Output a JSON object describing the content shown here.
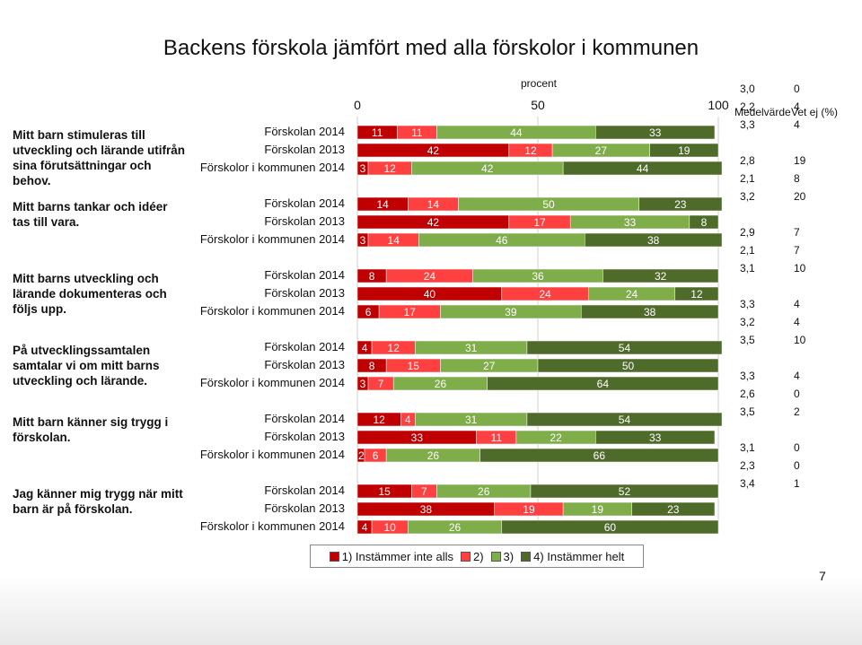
{
  "title": "Backens förskola jämfört med alla förskolor i kommunen",
  "axis_caption": "procent",
  "column_headers": {
    "mean": "Medelvärde",
    "unknown": "Vet ej (%)"
  },
  "side_stats": [
    {
      "mean": "3,0",
      "unknown": "0"
    },
    {
      "mean": "2,2",
      "unknown": "4"
    },
    {
      "mean": "3,3",
      "unknown": "4"
    },
    {
      "mean": "2,8",
      "unknown": "19"
    },
    {
      "mean": "2,1",
      "unknown": "8"
    },
    {
      "mean": "3,2",
      "unknown": "20"
    },
    {
      "mean": "2,9",
      "unknown": "7"
    },
    {
      "mean": "2,1",
      "unknown": "7"
    },
    {
      "mean": "3,1",
      "unknown": "10"
    },
    {
      "mean": "3,3",
      "unknown": "4"
    },
    {
      "mean": "3,2",
      "unknown": "4"
    },
    {
      "mean": "3,5",
      "unknown": "10"
    },
    {
      "mean": "3,3",
      "unknown": "4"
    },
    {
      "mean": "2,6",
      "unknown": "0"
    },
    {
      "mean": "3,5",
      "unknown": "2"
    },
    {
      "mean": "3,1",
      "unknown": "0"
    },
    {
      "mean": "2,3",
      "unknown": "0"
    },
    {
      "mean": "3,4",
      "unknown": "1"
    }
  ],
  "legend": {
    "items": [
      {
        "label": "1) Instämmer inte alls",
        "color": "#c00000"
      },
      {
        "label": "2)",
        "color": "#ff4040"
      },
      {
        "label": "3)",
        "color": "#7fad4a"
      },
      {
        "label": "4) Instämmer helt",
        "color": "#4f6b2a"
      }
    ]
  },
  "page_number": "7",
  "chart_data": {
    "type": "bar",
    "orientation": "horizontal",
    "stacked": true,
    "title": "Backens förskola jämfört med alla förskolor i kommunen",
    "xlabel": "procent",
    "xlim": [
      0,
      100
    ],
    "xticks": [
      "0",
      "50",
      "100"
    ],
    "series_names": [
      "1) Instämmer inte alls",
      "2)",
      "3)",
      "4) Instämmer helt"
    ],
    "colors": [
      "#c00000",
      "#ff4040",
      "#7fad4a",
      "#4f6b2a"
    ],
    "groups": [
      {
        "question": "Mitt barn stimuleras till utveckling och lärande utifrån sina förutsättningar och behov.",
        "rows": [
          {
            "label": "Förskolan 2014",
            "values": [
              11,
              11,
              44,
              33
            ]
          },
          {
            "label": "Förskolan 2013",
            "values": [
              42,
              12,
              27,
              19
            ]
          },
          {
            "label": "Förskolor i kommunen 2014",
            "values": [
              3,
              12,
              42,
              44
            ]
          }
        ]
      },
      {
        "question": "Mitt barns tankar och idéer tas till vara.",
        "rows": [
          {
            "label": "Förskolan 2014",
            "values": [
              14,
              14,
              50,
              23
            ]
          },
          {
            "label": "Förskolan 2013",
            "values": [
              42,
              17,
              33,
              8
            ]
          },
          {
            "label": "Förskolor i kommunen 2014",
            "values": [
              3,
              14,
              46,
              38
            ]
          }
        ]
      },
      {
        "question": "Mitt barns utveckling och lärande dokumenteras och följs upp.",
        "rows": [
          {
            "label": "Förskolan 2014",
            "values": [
              8,
              24,
              36,
              32
            ]
          },
          {
            "label": "Förskolan 2013",
            "values": [
              40,
              24,
              24,
              12
            ]
          },
          {
            "label": "Förskolor i kommunen 2014",
            "values": [
              6,
              17,
              39,
              38
            ]
          }
        ]
      },
      {
        "question": "På utvecklingssamtalen samtalar vi om mitt barns utveckling och lärande.",
        "rows": [
          {
            "label": "Förskolan 2014",
            "values": [
              4,
              12,
              31,
              54
            ]
          },
          {
            "label": "Förskolan 2013",
            "values": [
              8,
              15,
              27,
              50
            ]
          },
          {
            "label": "Förskolor i kommunen 2014",
            "values": [
              3,
              7,
              26,
              64
            ]
          }
        ]
      },
      {
        "question": "Mitt barn känner sig trygg i förskolan.",
        "rows": [
          {
            "label": "Förskolan 2014",
            "values": [
              12,
              4,
              31,
              54
            ]
          },
          {
            "label": "Förskolan 2013",
            "values": [
              33,
              11,
              22,
              33
            ]
          },
          {
            "label": "Förskolor i kommunen 2014",
            "values": [
              2,
              6,
              26,
              66
            ]
          }
        ]
      },
      {
        "question": "Jag känner mig trygg när mitt barn är på förskolan.",
        "rows": [
          {
            "label": "Förskolan 2014",
            "values": [
              15,
              7,
              26,
              52
            ]
          },
          {
            "label": "Förskolan 2013",
            "values": [
              38,
              19,
              19,
              23
            ]
          },
          {
            "label": "Förskolor i kommunen 2014",
            "values": [
              4,
              10,
              26,
              60
            ]
          }
        ]
      }
    ]
  }
}
